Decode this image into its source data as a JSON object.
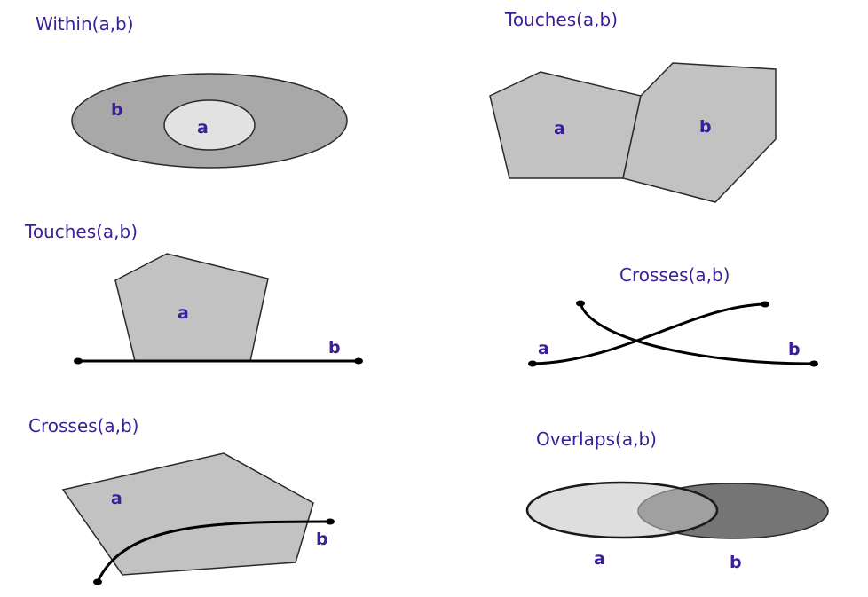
{
  "colors": {
    "text": "#3a1f99",
    "outline": "#2a2a2a",
    "line": "#000000",
    "fill_light": "#e2e2e2",
    "fill_mid": "#c2c2c2",
    "fill_dark": "#a8a8a8",
    "fill_darker": "#757575"
  },
  "panels": {
    "within": {
      "title": "Within(a,b)",
      "label_a": "a",
      "label_b": "b"
    },
    "touches_polygons": {
      "title": "Touches(a,b)",
      "label_a": "a",
      "label_b": "b"
    },
    "touches_line": {
      "title": "Touches(a,b)",
      "label_a": "a",
      "label_b": "b"
    },
    "crosses_lines": {
      "title": "Crosses(a,b)",
      "label_a": "a",
      "label_b": "b"
    },
    "crosses_polygon_line": {
      "title": "Crosses(a,b)",
      "label_a": "a",
      "label_b": "b"
    },
    "overlaps": {
      "title": "Overlaps(a,b)",
      "label_a": "a",
      "label_b": "b"
    }
  }
}
